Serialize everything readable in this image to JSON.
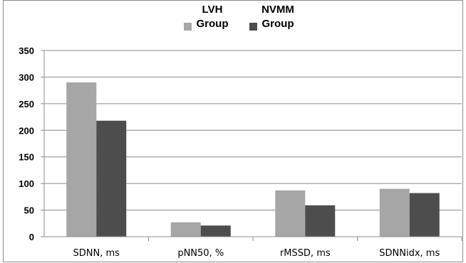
{
  "chart_data": {
    "type": "bar",
    "categories": [
      "SDNN, ms",
      "pNN50, %",
      "rMSSD, ms",
      "SDNNidx, ms"
    ],
    "series": [
      {
        "name": "LVH Group",
        "legend_lines": [
          "LVH",
          "Group"
        ],
        "color": "#a6a6a6",
        "values": [
          290,
          27,
          87,
          90
        ]
      },
      {
        "name": "NVMM Group",
        "legend_lines": [
          "NVMM",
          "Group"
        ],
        "color": "#4d4d4d",
        "values": [
          218,
          21,
          59,
          82
        ]
      }
    ],
    "y_ticks": [
      "0",
      "50",
      "100",
      "150",
      "200",
      "250",
      "300",
      "350"
    ],
    "ylim": [
      0,
      350
    ],
    "grid": true,
    "legend_position": "top"
  }
}
